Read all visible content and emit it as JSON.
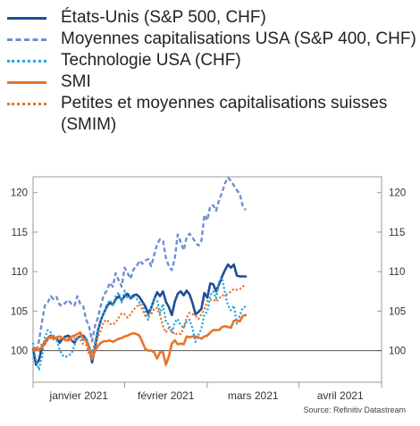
{
  "chart_data": {
    "type": "line",
    "title": "",
    "xlabel": "",
    "ylabel": "",
    "x_tick_labels": [
      "janvier 2021",
      "février 2021",
      "mars 2021",
      "avril 2021"
    ],
    "x_range_days": [
      0,
      118
    ],
    "ylim": [
      96,
      122
    ],
    "y_ticks": [
      100,
      105,
      110,
      115,
      120
    ],
    "grid": false,
    "legend": "top",
    "baseline": 100,
    "series": [
      {
        "name": "États-Unis (S&P 500, CHF)",
        "color": "#1f4e96",
        "style": "solid",
        "values": [
          100.2,
          98.2,
          98.8,
          100.4,
          101.1,
          101.6,
          101.9,
          101.7,
          101.5,
          101.0,
          101.5,
          101.8,
          101.9,
          101.3,
          101.0,
          101.6,
          101.8,
          101.9,
          101.4,
          100.4,
          98.5,
          100.4,
          102.6,
          103.9,
          104.8,
          105.6,
          106.1,
          105.8,
          106.5,
          106.9,
          106.4,
          106.9,
          107.2,
          106.6,
          107.0,
          107.1,
          106.8,
          106.2,
          105.6,
          104.7,
          105.4,
          106.5,
          107.4,
          106.9,
          107.5,
          106.2,
          105.5,
          104.5,
          106.2,
          107.2,
          107.5,
          107.0,
          107.6,
          107.1,
          106.0,
          104.6,
          104.9,
          105.3,
          107.3,
          106.7,
          108.5,
          108.4,
          107.5,
          108.4,
          109.4,
          110.2,
          110.9,
          110.5,
          110.9,
          109.5,
          109.4,
          109.4,
          109.4
        ]
      },
      {
        "name": "Moyennes capitalisations USA (S&P 400, CHF)",
        "color": "#6f8fd2",
        "style": "dashed",
        "values": [
          100.4,
          99.8,
          101.2,
          103.6,
          105.7,
          106.1,
          106.9,
          106.5,
          106.8,
          105.8,
          105.7,
          106.1,
          106.4,
          105.9,
          105.7,
          106.9,
          105.9,
          105.6,
          103.9,
          103.0,
          101.2,
          103.2,
          104.2,
          105.8,
          107.1,
          107.6,
          108.6,
          108.1,
          109.8,
          108.9,
          108.1,
          110.5,
          109.8,
          109.1,
          110.3,
          110.6,
          111.4,
          111.0,
          111.4,
          111.6,
          110.7,
          112.1,
          113.5,
          114.1,
          113.9,
          111.7,
          110.7,
          110.2,
          111.7,
          114.7,
          113.7,
          112.7,
          114.4,
          114.8,
          114.3,
          113.7,
          113.3,
          113.9,
          117.2,
          116.5,
          118.3,
          118.4,
          117.7,
          119.1,
          120.0,
          121.2,
          121.9,
          121.5,
          120.9,
          120.3,
          119.8,
          118.3,
          117.8
        ]
      },
      {
        "name": "Technologie USA (CHF)",
        "color": "#29a3e3",
        "style": "dotted",
        "values": [
          101.0,
          98.7,
          97.6,
          99.2,
          101.7,
          102.6,
          102.3,
          101.4,
          101.3,
          100.1,
          99.4,
          99.2,
          99.4,
          99.6,
          100.7,
          101.7,
          101.9,
          101.3,
          101.6,
          100.5,
          99.7,
          101.2,
          102.7,
          104.0,
          104.7,
          105.9,
          106.4,
          105.6,
          106.9,
          107.4,
          106.1,
          107.6,
          106.6,
          106.8,
          106.8,
          106.6,
          106.1,
          105.9,
          104.9,
          103.9,
          105.4,
          106.6,
          106.4,
          104.7,
          105.9,
          103.6,
          103.3,
          102.2,
          103.6,
          104.0,
          103.2,
          102.9,
          103.7,
          103.9,
          102.8,
          101.1,
          102.0,
          102.8,
          104.6,
          104.9,
          107.0,
          107.5,
          106.6,
          108.8,
          109.2,
          107.3,
          105.7,
          105.1,
          105.7,
          103.4,
          104.5,
          105.4,
          105.6
        ]
      },
      {
        "name": "SMI",
        "color": "#e8742c",
        "style": "solid",
        "values": [
          100.0,
          100.3,
          100.0,
          100.5,
          100.8,
          101.5,
          101.8,
          101.5,
          101.7,
          101.8,
          101.6,
          101.3,
          101.3,
          101.8,
          101.9,
          102.1,
          102.3,
          101.5,
          101.2,
          100.3,
          98.9,
          100.0,
          100.6,
          101.0,
          101.2,
          101.2,
          101.3,
          101.1,
          101.3,
          101.5,
          101.6,
          101.8,
          101.9,
          102.1,
          102.2,
          102.1,
          101.9,
          101.1,
          100.2,
          100.0,
          100.0,
          99.8,
          99.0,
          99.8,
          99.8,
          98.2,
          99.3,
          100.9,
          101.3,
          100.8,
          100.9,
          100.8,
          101.8,
          101.7,
          101.8,
          101.8,
          101.7,
          101.5,
          101.8,
          101.9,
          102.3,
          102.6,
          102.6,
          102.6,
          103.0,
          103.1,
          103.0,
          102.9,
          103.8,
          103.8,
          103.7,
          104.4,
          104.5
        ]
      },
      {
        "name": "Petites et moyennes capitalisations suisses (SMIM)",
        "color": "#e8742c",
        "style": "dotted",
        "values": [
          100.5,
          100.1,
          100.1,
          100.9,
          101.2,
          101.3,
          101.6,
          101.9,
          101.5,
          101.4,
          101.5,
          101.6,
          101.4,
          101.3,
          101.6,
          101.7,
          101.4,
          100.8,
          100.7,
          99.5,
          99.0,
          100.7,
          101.7,
          102.6,
          103.7,
          103.9,
          103.4,
          103.3,
          103.6,
          104.2,
          104.7,
          104.6,
          104.2,
          104.6,
          105.2,
          105.5,
          105.9,
          105.2,
          104.4,
          104.4,
          104.6,
          105.3,
          105.4,
          104.5,
          103.1,
          102.3,
          102.9,
          102.6,
          102.0,
          102.2,
          102.1,
          102.9,
          104.2,
          104.8,
          104.6,
          104.4,
          104.0,
          104.6,
          105.2,
          106.3,
          106.4,
          106.5,
          106.2,
          106.6,
          107.0,
          107.0,
          107.2,
          107.5,
          107.8,
          107.7,
          107.8,
          108.1,
          108.4
        ]
      }
    ],
    "source": "Source: Refinitiv Datastream"
  }
}
